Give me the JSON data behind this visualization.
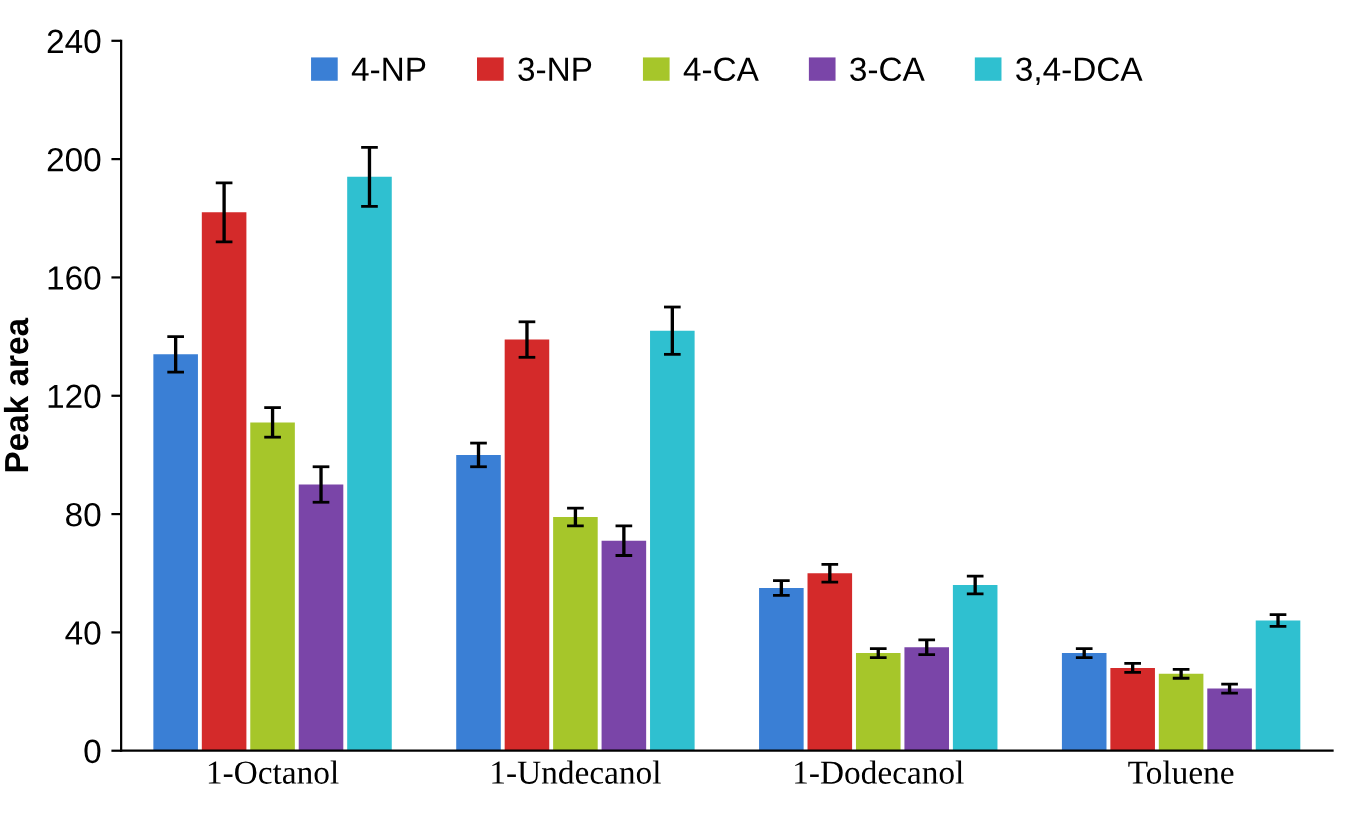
{
  "chart_data": {
    "type": "bar",
    "ylabel": "Peak area",
    "categories": [
      "1-Octanol",
      "1-Undecanol",
      "1-Dodecanol",
      "Toluene"
    ],
    "series": [
      {
        "name": "4-NP",
        "color": "#3a7fd5",
        "values": [
          134,
          100,
          55,
          33
        ],
        "errors": [
          6,
          4,
          2.5,
          1.5
        ]
      },
      {
        "name": "3-NP",
        "color": "#d42a2a",
        "values": [
          182,
          139,
          60,
          28
        ],
        "errors": [
          10,
          6,
          3,
          1.5
        ]
      },
      {
        "name": "4-CA",
        "color": "#a6c62a",
        "values": [
          111,
          79,
          33,
          26
        ],
        "errors": [
          5,
          3,
          1.5,
          1.5
        ]
      },
      {
        "name": "3-CA",
        "color": "#7a45a8",
        "values": [
          90,
          71,
          35,
          21
        ],
        "errors": [
          6,
          5,
          2.5,
          1.5
        ]
      },
      {
        "name": "3,4-DCA",
        "color": "#2fc0d0",
        "values": [
          194,
          142,
          56,
          44
        ],
        "errors": [
          10,
          8,
          3,
          2
        ]
      }
    ],
    "ylim": [
      0,
      240
    ],
    "yticks": [
      0,
      40,
      80,
      120,
      160,
      200,
      240
    ],
    "grid": false,
    "legend": "top"
  }
}
